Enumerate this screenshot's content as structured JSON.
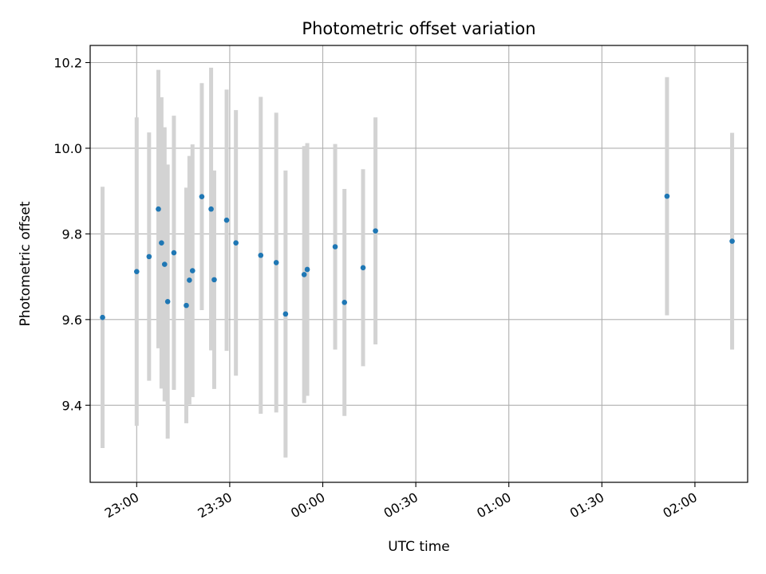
{
  "chart_data": {
    "type": "scatter",
    "title": "Photometric offset variation",
    "xlabel": "UTC time",
    "ylabel": "Photometric offset",
    "x_is_time": true,
    "xlim": [
      "22:45",
      "02:17"
    ],
    "ylim": [
      9.22,
      10.24
    ],
    "x_ticks": [
      "23:00",
      "23:30",
      "00:00",
      "00:30",
      "01:00",
      "01:30",
      "02:00"
    ],
    "y_ticks": [
      9.4,
      9.6,
      9.8,
      10.0,
      10.2
    ],
    "y_tick_labels": [
      "9.4",
      "9.6",
      "9.8",
      "10.0",
      "10.2"
    ],
    "grid": true,
    "colors": {
      "point": "#1f77b4",
      "errorbar": "#d3d3d3",
      "grid": "#b0b0b0"
    },
    "series": [
      {
        "points": [
          {
            "x": "22:49",
            "y": 9.605,
            "yerr": 0.305
          },
          {
            "x": "23:00",
            "y": 9.712,
            "yerr": 0.36
          },
          {
            "x": "23:04",
            "y": 9.747,
            "yerr": 0.29
          },
          {
            "x": "23:07",
            "y": 9.858,
            "yerr": 0.325
          },
          {
            "x": "23:08",
            "y": 9.779,
            "yerr": 0.34
          },
          {
            "x": "23:09",
            "y": 9.729,
            "yerr": 0.32
          },
          {
            "x": "23:10",
            "y": 9.642,
            "yerr": 0.32
          },
          {
            "x": "23:12",
            "y": 9.756,
            "yerr": 0.32
          },
          {
            "x": "23:16",
            "y": 9.633,
            "yerr": 0.275
          },
          {
            "x": "23:17",
            "y": 9.692,
            "yerr": 0.29
          },
          {
            "x": "23:18",
            "y": 9.714,
            "yerr": 0.295
          },
          {
            "x": "23:21",
            "y": 9.887,
            "yerr": 0.265
          },
          {
            "x": "23:24",
            "y": 9.858,
            "yerr": 0.33
          },
          {
            "x": "23:25",
            "y": 9.693,
            "yerr": 0.255
          },
          {
            "x": "23:29",
            "y": 9.832,
            "yerr": 0.305
          },
          {
            "x": "23:32",
            "y": 9.779,
            "yerr": 0.31
          },
          {
            "x": "23:40",
            "y": 9.75,
            "yerr": 0.37
          },
          {
            "x": "23:45",
            "y": 9.733,
            "yerr": 0.35
          },
          {
            "x": "23:48",
            "y": 9.613,
            "yerr": 0.335
          },
          {
            "x": "23:54",
            "y": 9.705,
            "yerr": 0.3
          },
          {
            "x": "23:55",
            "y": 9.717,
            "yerr": 0.295
          },
          {
            "x": "00:04",
            "y": 9.77,
            "yerr": 0.24
          },
          {
            "x": "00:07",
            "y": 9.64,
            "yerr": 0.265
          },
          {
            "x": "00:13",
            "y": 9.721,
            "yerr": 0.23
          },
          {
            "x": "00:17",
            "y": 9.807,
            "yerr": 0.265
          },
          {
            "x": "01:51",
            "y": 9.888,
            "yerr": 0.278
          },
          {
            "x": "02:12",
            "y": 9.783,
            "yerr": 0.253
          }
        ]
      }
    ]
  }
}
